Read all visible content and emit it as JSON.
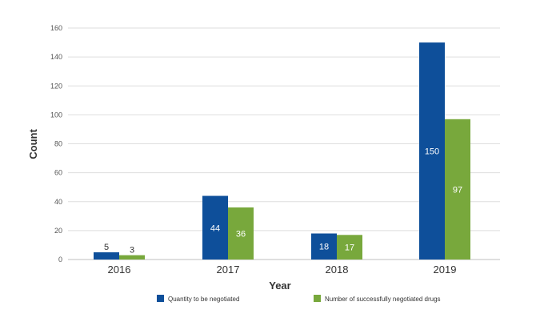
{
  "chart_data": {
    "type": "bar",
    "title": "",
    "xlabel": "Year",
    "ylabel": "Count",
    "categories": [
      "2016",
      "2017",
      "2018",
      "2019"
    ],
    "series": [
      {
        "name": "Quantity to be negotiated",
        "values": [
          5,
          44,
          18,
          150
        ],
        "color": "#0e4f9a"
      },
      {
        "name": "Number of successfully negotiated drugs",
        "values": [
          3,
          36,
          17,
          97
        ],
        "color": "#78a83c"
      }
    ],
    "data_labels": [
      [
        "5",
        "44",
        "18",
        "150"
      ],
      [
        "3",
        "36",
        "17",
        "97"
      ]
    ],
    "yticks": [
      0,
      20,
      40,
      60,
      80,
      100,
      120,
      140,
      160
    ],
    "ylim": [
      0,
      160
    ],
    "grid": true,
    "legend_position": "bottom"
  }
}
